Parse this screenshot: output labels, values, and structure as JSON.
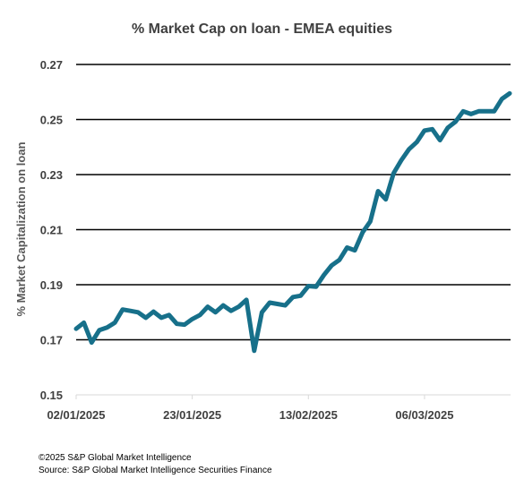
{
  "chart_data": {
    "type": "line",
    "title": "% Market Cap on loan - EMEA equities",
    "ylabel": "% Market Capitalization on loan",
    "xlabel": "",
    "ylim": [
      0.15,
      0.27
    ],
    "yticks": [
      "0.27",
      "0.25",
      "0.23",
      "0.21",
      "0.19",
      "0.17",
      "0.15"
    ],
    "xticks": [
      "02/01/2025",
      "23/01/2025",
      "13/02/2025",
      "06/03/2025"
    ],
    "grid": true,
    "line_color": "#17708A",
    "series": [
      {
        "x": [
          "02/01/2025",
          "03/01/2025",
          "06/01/2025",
          "07/01/2025",
          "08/01/2025",
          "09/01/2025",
          "10/01/2025",
          "13/01/2025",
          "14/01/2025",
          "15/01/2025",
          "16/01/2025",
          "17/01/2025",
          "20/01/2025",
          "21/01/2025",
          "22/01/2025",
          "23/01/2025",
          "24/01/2025",
          "27/01/2025",
          "28/01/2025",
          "29/01/2025",
          "30/01/2025",
          "31/01/2025",
          "03/02/2025",
          "04/02/2025",
          "05/02/2025",
          "06/02/2025",
          "07/02/2025",
          "10/02/2025",
          "11/02/2025",
          "12/02/2025",
          "13/02/2025",
          "14/02/2025",
          "17/02/2025",
          "18/02/2025",
          "19/02/2025",
          "20/02/2025",
          "21/02/2025",
          "24/02/2025",
          "25/02/2025",
          "26/02/2025",
          "27/02/2025",
          "28/02/2025",
          "03/03/2025",
          "04/03/2025",
          "05/03/2025",
          "06/03/2025",
          "07/03/2025",
          "10/03/2025",
          "11/03/2025",
          "12/03/2025",
          "13/03/2025",
          "14/03/2025",
          "17/03/2025",
          "18/03/2025",
          "19/03/2025",
          "20/03/2025",
          "21/03/2025"
        ],
        "values": [
          0.174,
          0.1762,
          0.169,
          0.1735,
          0.1745,
          0.1762,
          0.181,
          0.1805,
          0.18,
          0.178,
          0.1802,
          0.178,
          0.179,
          0.1758,
          0.1755,
          0.1775,
          0.179,
          0.182,
          0.18,
          0.1825,
          0.1805,
          0.182,
          0.1845,
          0.166,
          0.18,
          0.1835,
          0.183,
          0.1825,
          0.1855,
          0.186,
          0.1895,
          0.1893,
          0.1935,
          0.197,
          0.199,
          0.2035,
          0.2025,
          0.209,
          0.213,
          0.224,
          0.221,
          0.2305,
          0.2352,
          0.2392,
          0.2418,
          0.246,
          0.2465,
          0.2425,
          0.247,
          0.2492,
          0.253,
          0.252,
          0.253,
          0.253,
          0.253,
          0.2575,
          0.2595
        ]
      }
    ]
  },
  "footer": {
    "copyright": "©2025 S&P Global Market Intelligence",
    "source": "Source: S&P Global Market Intelligence Securities Finance"
  }
}
